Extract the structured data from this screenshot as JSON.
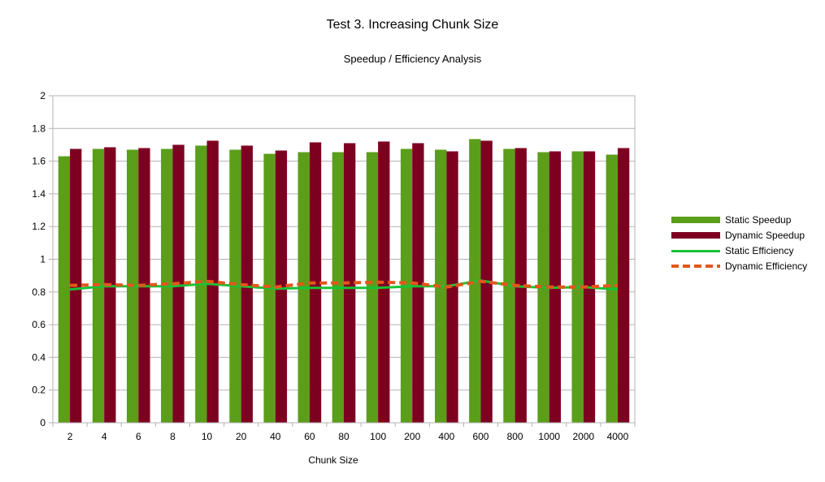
{
  "chart_data": {
    "type": "bar",
    "title": "Test 3. Increasing Chunk Size",
    "subtitle": "Speedup / Efficiency Analysis",
    "xlabel": "Chunk Size",
    "ylabel": "",
    "ylim": [
      0,
      2
    ],
    "yticks": [
      "0",
      "0.2",
      "0.4",
      "0.6",
      "0.8",
      "1",
      "1.2",
      "1.4",
      "1.6",
      "1.8",
      "2"
    ],
    "categories": [
      "2",
      "4",
      "6",
      "8",
      "10",
      "20",
      "40",
      "60",
      "80",
      "100",
      "200",
      "400",
      "600",
      "800",
      "1000",
      "2000",
      "4000"
    ],
    "grid": true,
    "legend_position": "right",
    "series": [
      {
        "name": "Static Speedup",
        "kind": "bar",
        "color": "#5a9e1a",
        "values": [
          1.63,
          1.675,
          1.67,
          1.675,
          1.695,
          1.67,
          1.645,
          1.655,
          1.655,
          1.655,
          1.675,
          1.67,
          1.735,
          1.675,
          1.655,
          1.66,
          1.64
        ]
      },
      {
        "name": "Dynamic Speedup",
        "kind": "bar",
        "color": "#7e0021",
        "values": [
          1.675,
          1.685,
          1.68,
          1.7,
          1.725,
          1.695,
          1.665,
          1.715,
          1.71,
          1.72,
          1.71,
          1.66,
          1.725,
          1.68,
          1.66,
          1.66,
          1.68
        ]
      },
      {
        "name": "Static Efficiency",
        "kind": "line",
        "color": "#19c236",
        "values": [
          0.815,
          0.835,
          0.835,
          0.835,
          0.85,
          0.835,
          0.82,
          0.825,
          0.825,
          0.825,
          0.835,
          0.835,
          0.87,
          0.835,
          0.825,
          0.83,
          0.815
        ]
      },
      {
        "name": "Dynamic Efficiency",
        "kind": "dashed-line",
        "color": "#e2571b",
        "values": [
          0.84,
          0.845,
          0.84,
          0.85,
          0.865,
          0.845,
          0.83,
          0.855,
          0.855,
          0.86,
          0.855,
          0.83,
          0.865,
          0.84,
          0.83,
          0.83,
          0.84
        ]
      }
    ]
  }
}
